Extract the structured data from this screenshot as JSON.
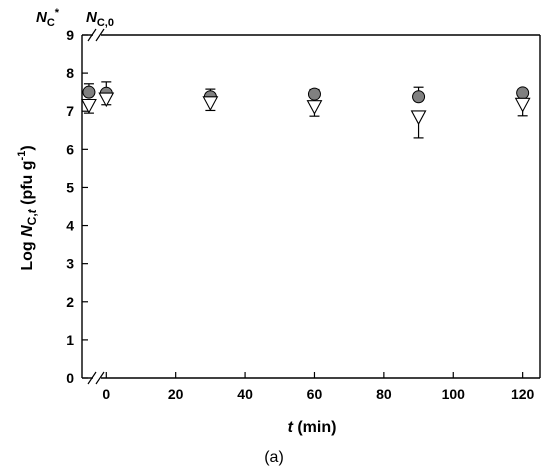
{
  "chart_data": {
    "type": "scatter",
    "xlabel": {
      "var": "t",
      "rest": " (min)"
    },
    "ylabel": {
      "prefix": "Log ",
      "var": "N",
      "sub1": "C,",
      "sub2": "t",
      "unit_open": " (pfu g",
      "unit_sup": "-1",
      "unit_close": ")"
    },
    "xlim": [
      -7,
      125
    ],
    "ylim": [
      0,
      9
    ],
    "x_ticks": [
      0,
      20,
      40,
      60,
      80,
      100,
      120
    ],
    "y_ticks": [
      0,
      1,
      2,
      3,
      4,
      5,
      6,
      7,
      8,
      9
    ],
    "axis_break": "x",
    "grid": false,
    "annotations": {
      "nc_star": {
        "main": "N",
        "sub": "C",
        "sup": "*"
      },
      "nc_zero": {
        "main": "N",
        "sub": "C,0"
      }
    },
    "panel_label": "(a)",
    "series": [
      {
        "marker": "circle",
        "fill": "#808080",
        "points": [
          {
            "x": -5,
            "y": 7.5,
            "err": 0.22
          },
          {
            "x": 0,
            "y": 7.47,
            "err": 0.3
          },
          {
            "x": 30,
            "y": 7.38,
            "err": 0.2
          },
          {
            "x": 60,
            "y": 7.45,
            "err": 0.12
          },
          {
            "x": 90,
            "y": 7.38,
            "err": 0.25
          },
          {
            "x": 120,
            "y": 7.48,
            "err": 0.1
          }
        ]
      },
      {
        "marker": "triangle-down",
        "fill": "#ffffff",
        "points": [
          {
            "x": -5,
            "y": 7.15,
            "err": 0.2
          },
          {
            "x": 0,
            "y": 7.32,
            "err": 0.15
          },
          {
            "x": 30,
            "y": 7.22,
            "err": 0.2
          },
          {
            "x": 60,
            "y": 7.12,
            "err": 0.25
          },
          {
            "x": 90,
            "y": 6.85,
            "err": 0.55
          },
          {
            "x": 120,
            "y": 7.18,
            "err": 0.3
          }
        ]
      }
    ]
  }
}
